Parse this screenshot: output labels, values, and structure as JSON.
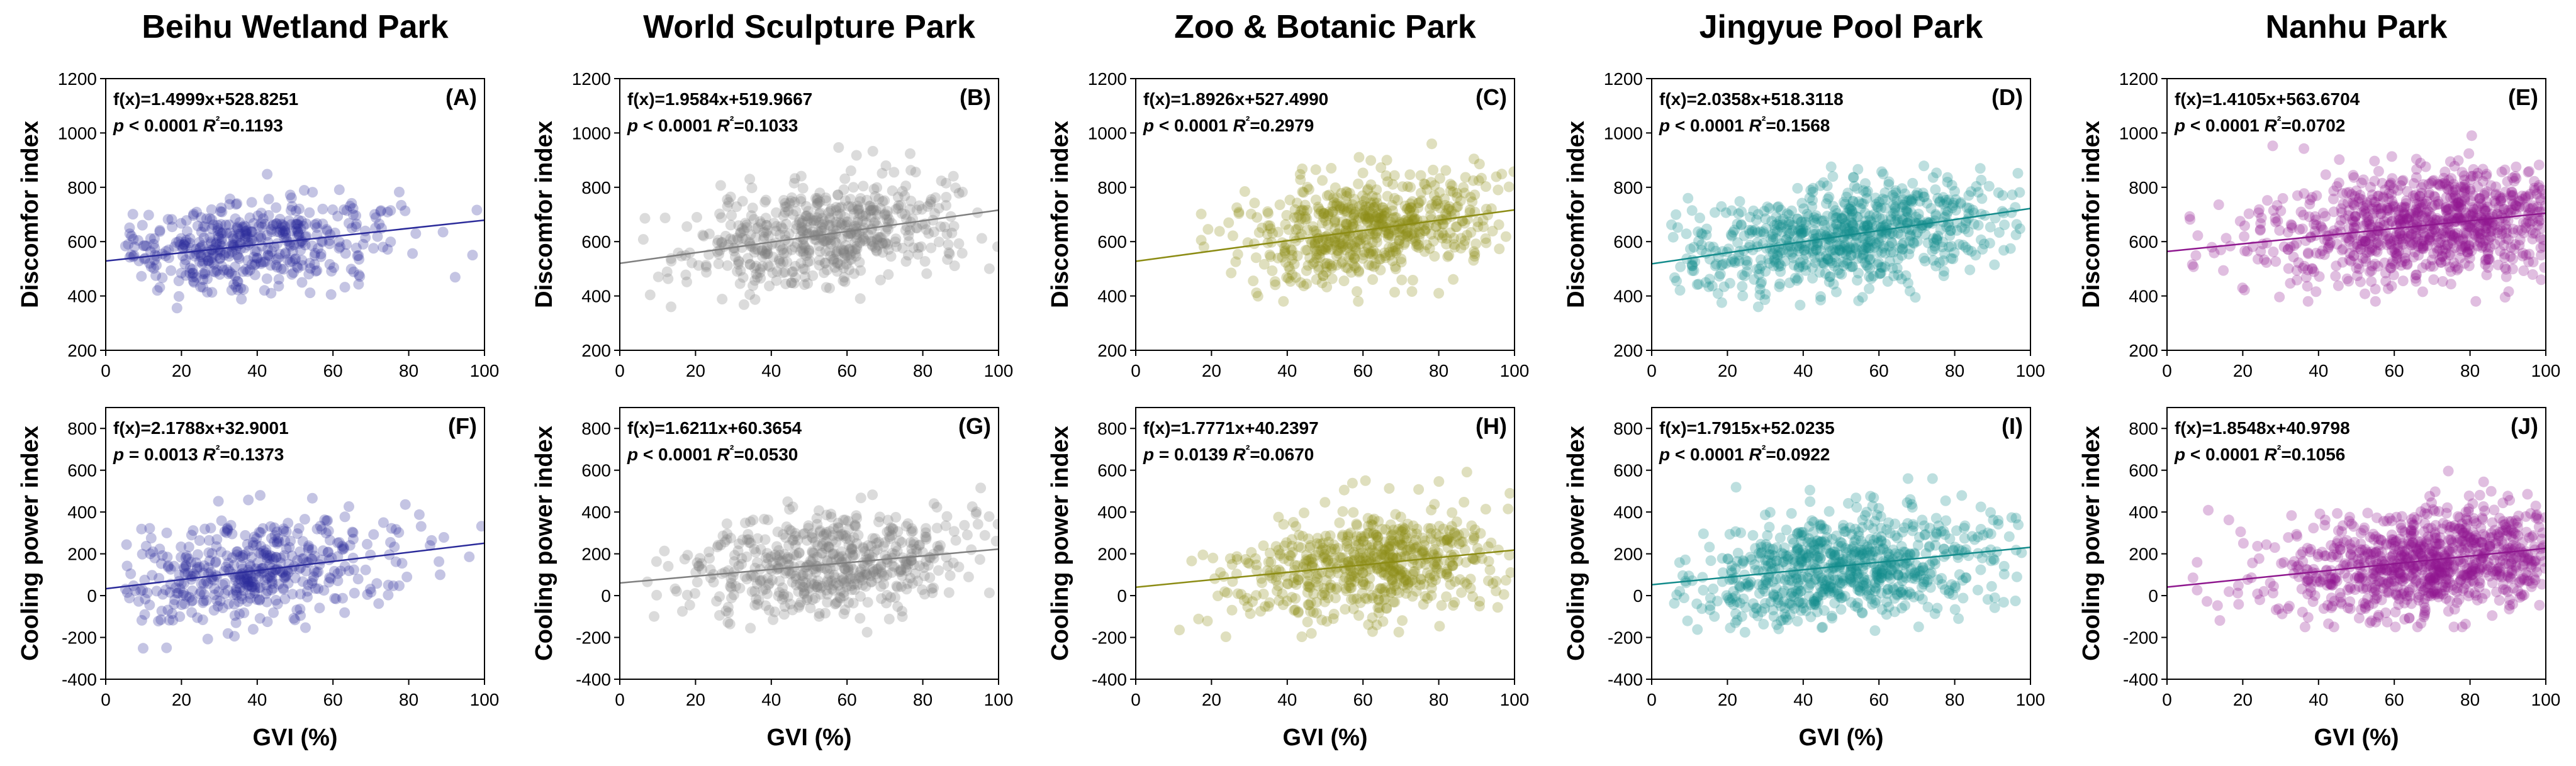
{
  "figure": {
    "x_label": "GVI (%)",
    "top_y_label": "Discomfor index",
    "bottom_y_label": "Cooling power index"
  },
  "parks": [
    {
      "name": "Beihu Wetland Park",
      "color": "#2b2b9a"
    },
    {
      "name": "World Sculpture Park",
      "color": "#7f7f7f"
    },
    {
      "name": "Zoo & Botanic Park",
      "color": "#8c8c14"
    },
    {
      "name": "Jingyue Pool Park",
      "color": "#138b8b"
    },
    {
      "name": "Nanhu Park",
      "color": "#8e178e"
    }
  ],
  "chart_data": [
    {
      "type": "scatter",
      "id": "A",
      "park": "Beihu Wetland Park",
      "panel_label": "(A)",
      "ylabel": "Discomfor index",
      "xlabel": "GVI (%)",
      "xlim": [
        0,
        100
      ],
      "ylim": [
        200,
        1200
      ],
      "xticks": [
        0,
        20,
        40,
        60,
        80,
        100
      ],
      "yticks": [
        200,
        400,
        600,
        800,
        1000,
        1200
      ],
      "equation": "f(x)=1.4999x+528.8251",
      "slope": 1.4999,
      "intercept": 528.8251,
      "p_text": "p < 0.0001",
      "r2_text": "R²=0.1193",
      "r2": 0.1193,
      "p_sign": "<",
      "p_value": "0.0001",
      "points": {
        "n": 460,
        "x_range": [
          5,
          100
        ],
        "x_center": 38,
        "x_spread": 18,
        "y_sd": 80,
        "y_min": 340,
        "y_max": 920
      }
    },
    {
      "type": "scatter",
      "id": "B",
      "park": "World Sculpture Park",
      "panel_label": "(B)",
      "ylabel": "Discomfor index",
      "xlabel": "GVI (%)",
      "xlim": [
        0,
        100
      ],
      "ylim": [
        200,
        1200
      ],
      "xticks": [
        0,
        20,
        40,
        60,
        80,
        100
      ],
      "yticks": [
        200,
        400,
        600,
        800,
        1000,
        1200
      ],
      "equation": "f(x)=1.9584x+519.9667",
      "slope": 1.9584,
      "intercept": 519.9667,
      "p_text": "p < 0.0001",
      "r2_text": "R²=0.1033",
      "r2": 0.1033,
      "p_sign": "<",
      "p_value": "0.0001",
      "points": {
        "n": 560,
        "x_range": [
          5,
          100
        ],
        "x_center": 55,
        "x_spread": 18,
        "y_sd": 95,
        "y_min": 360,
        "y_max": 980
      }
    },
    {
      "type": "scatter",
      "id": "C",
      "park": "Zoo & Botanic Park",
      "panel_label": "(C)",
      "ylabel": "Discomfor index",
      "xlabel": "GVI (%)",
      "xlim": [
        0,
        100
      ],
      "ylim": [
        200,
        1200
      ],
      "xticks": [
        0,
        20,
        40,
        60,
        80,
        100
      ],
      "yticks": [
        200,
        400,
        600,
        800,
        1000,
        1200
      ],
      "equation": "f(x)=1.8926x+527.4990",
      "slope": 1.8926,
      "intercept": 527.499,
      "p_text": "p < 0.0001",
      "r2_text": "R²=0.2979",
      "r2": 0.2979,
      "p_sign": "<",
      "p_value": "0.0001",
      "points": {
        "n": 620,
        "x_range": [
          10,
          100
        ],
        "x_center": 62,
        "x_spread": 17,
        "y_sd": 95,
        "y_min": 380,
        "y_max": 960
      }
    },
    {
      "type": "scatter",
      "id": "D",
      "park": "Jingyue Pool Park",
      "panel_label": "(D)",
      "ylabel": "Discomfor index",
      "xlabel": "GVI (%)",
      "xlim": [
        0,
        100
      ],
      "ylim": [
        200,
        1200
      ],
      "xticks": [
        0,
        20,
        40,
        60,
        80,
        100
      ],
      "yticks": [
        200,
        400,
        600,
        800,
        1000,
        1200
      ],
      "equation": "f(x)=2.0358x+518.3118",
      "slope": 2.0358,
      "intercept": 518.3118,
      "p_text": "p < 0.0001",
      "r2_text": "R²=0.1568",
      "r2": 0.1568,
      "p_sign": "<",
      "p_value": "0.0001",
      "points": {
        "n": 760,
        "x_range": [
          5,
          98
        ],
        "x_center": 52,
        "x_spread": 21,
        "y_sd": 95,
        "y_min": 360,
        "y_max": 960
      }
    },
    {
      "type": "scatter",
      "id": "E",
      "park": "Nanhu Park",
      "panel_label": "(E)",
      "ylabel": "Discomfor index",
      "xlabel": "GVI (%)",
      "xlim": [
        0,
        100
      ],
      "ylim": [
        200,
        1200
      ],
      "xticks": [
        0,
        20,
        40,
        60,
        80,
        100
      ],
      "yticks": [
        200,
        400,
        600,
        800,
        1000,
        1200
      ],
      "equation": "f(x)=1.4105x+563.6704",
      "slope": 1.4105,
      "intercept": 563.6704,
      "p_text": "p < 0.0001",
      "r2_text": "R²=0.0702",
      "r2": 0.0702,
      "p_sign": "<",
      "p_value": "0.0001",
      "points": {
        "n": 920,
        "x_range": [
          5,
          100
        ],
        "x_center": 72,
        "x_spread": 20,
        "y_sd": 100,
        "y_min": 380,
        "y_max": 990
      }
    },
    {
      "type": "scatter",
      "id": "F",
      "park": "Beihu Wetland Park",
      "panel_label": "(F)",
      "ylabel": "Cooling power index",
      "xlabel": "GVI (%)",
      "xlim": [
        0,
        100
      ],
      "ylim": [
        -400,
        900
      ],
      "xticks": [
        0,
        20,
        40,
        60,
        80,
        100
      ],
      "yticks": [
        -400,
        -200,
        0,
        200,
        400,
        600,
        800
      ],
      "equation": "f(x)=2.1788x+32.9001",
      "slope": 2.1788,
      "intercept": 32.9001,
      "p_text": "p = 0.0013",
      "r2_text": "R²=0.1373",
      "r2": 0.1373,
      "p_sign": "=",
      "p_value": "0.0013",
      "points": {
        "n": 460,
        "x_range": [
          5,
          100
        ],
        "x_center": 38,
        "x_spread": 18,
        "y_sd": 120,
        "y_min": -300,
        "y_max": 480
      }
    },
    {
      "type": "scatter",
      "id": "G",
      "park": "World Sculpture Park",
      "panel_label": "(G)",
      "ylabel": "Cooling power index",
      "xlabel": "GVI (%)",
      "xlim": [
        0,
        100
      ],
      "ylim": [
        -400,
        900
      ],
      "xticks": [
        0,
        20,
        40,
        60,
        80,
        100
      ],
      "yticks": [
        -400,
        -200,
        0,
        200,
        400,
        600,
        800
      ],
      "equation": "f(x)=1.6211x+60.3654",
      "slope": 1.6211,
      "intercept": 60.3654,
      "p_text": "p < 0.0001",
      "r2_text": "R²=0.0530",
      "r2": 0.053,
      "p_sign": "<",
      "p_value": "0.0001",
      "points": {
        "n": 560,
        "x_range": [
          5,
          100
        ],
        "x_center": 55,
        "x_spread": 18,
        "y_sd": 125,
        "y_min": -240,
        "y_max": 560
      }
    },
    {
      "type": "scatter",
      "id": "H",
      "park": "Zoo & Botanic Park",
      "panel_label": "(H)",
      "ylabel": "Cooling power index",
      "xlabel": "GVI (%)",
      "xlim": [
        0,
        100
      ],
      "ylim": [
        -400,
        900
      ],
      "xticks": [
        0,
        20,
        40,
        60,
        80,
        100
      ],
      "yticks": [
        -400,
        -200,
        0,
        200,
        400,
        600,
        800
      ],
      "equation": "f(x)=1.7771x+40.2397",
      "slope": 1.7771,
      "intercept": 40.2397,
      "p_text": "p = 0.0139",
      "r2_text": "R²=0.0670",
      "r2": 0.067,
      "p_sign": "=",
      "p_value": "0.0139",
      "points": {
        "n": 620,
        "x_range": [
          10,
          100
        ],
        "x_center": 62,
        "x_spread": 17,
        "y_sd": 115,
        "y_min": -200,
        "y_max": 640
      }
    },
    {
      "type": "scatter",
      "id": "I",
      "park": "Jingyue Pool Park",
      "panel_label": "(I)",
      "ylabel": "Cooling power index",
      "xlabel": "GVI (%)",
      "xlim": [
        0,
        100
      ],
      "ylim": [
        -400,
        900
      ],
      "xticks": [
        0,
        20,
        40,
        60,
        80,
        100
      ],
      "yticks": [
        -400,
        -200,
        0,
        200,
        400,
        600,
        800
      ],
      "equation": "f(x)=1.7915x+52.0235",
      "slope": 1.7915,
      "intercept": 52.0235,
      "p_text": "p < 0.0001",
      "r2_text": "R²=0.0922",
      "r2": 0.0922,
      "p_sign": "<",
      "p_value": "0.0001",
      "points": {
        "n": 760,
        "x_range": [
          5,
          98
        ],
        "x_center": 52,
        "x_spread": 21,
        "y_sd": 125,
        "y_min": -200,
        "y_max": 560
      }
    },
    {
      "type": "scatter",
      "id": "J",
      "park": "Nanhu Park",
      "panel_label": "(J)",
      "ylabel": "Cooling power index",
      "xlabel": "GVI (%)",
      "xlim": [
        0,
        100
      ],
      "ylim": [
        -400,
        900
      ],
      "xticks": [
        0,
        20,
        40,
        60,
        80,
        100
      ],
      "yticks": [
        -400,
        -200,
        0,
        200,
        400,
        600,
        800
      ],
      "equation": "f(x)=1.8548x+40.9798",
      "slope": 1.8548,
      "intercept": 40.9798,
      "p_text": "p < 0.0001",
      "r2_text": "R²=0.1056",
      "r2": 0.1056,
      "p_sign": "<",
      "p_value": "0.0001",
      "points": {
        "n": 920,
        "x_range": [
          5,
          100
        ],
        "x_center": 72,
        "x_spread": 20,
        "y_sd": 125,
        "y_min": -150,
        "y_max": 640
      }
    }
  ]
}
